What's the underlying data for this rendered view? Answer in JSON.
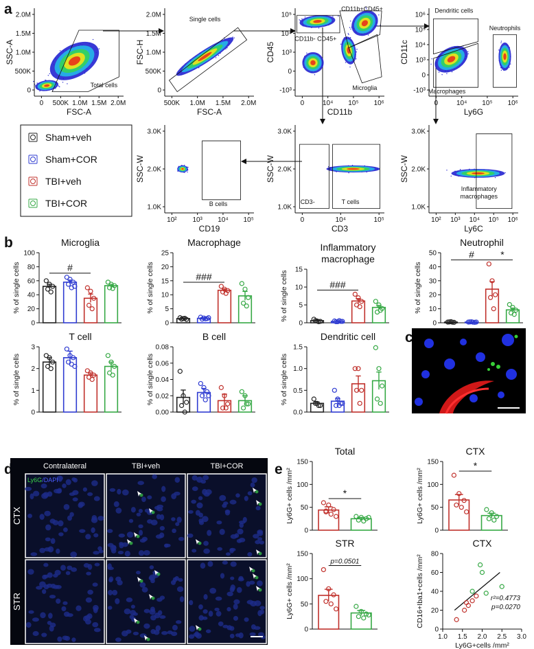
{
  "panel_labels": [
    "a",
    "b",
    "c",
    "d",
    "e"
  ],
  "legend": [
    {
      "label": "Sham+veh",
      "color": "#222222"
    },
    {
      "label": "Sham+COR",
      "color": "#2e3bd1"
    },
    {
      "label": "TBI+veh",
      "color": "#c0302b"
    },
    {
      "label": "TBI+COR",
      "color": "#35a844"
    }
  ],
  "flow_plots": [
    {
      "ylabel": "SSC-A",
      "xlabel": "FSC-A",
      "yticks": [
        "0",
        "500K",
        "1.0M",
        "1.5M",
        "2.0M"
      ],
      "xticks": [
        "0",
        "500K",
        "1.0M",
        "1.5M",
        "2.0M"
      ],
      "gates": [
        {
          "label": "Total cells"
        }
      ]
    },
    {
      "ylabel": "FSC-H",
      "xlabel": "FSC-A",
      "yticks": [
        "0",
        "500K",
        "1.0M",
        "1.5M",
        "2.0M"
      ],
      "xticks": [
        "500K",
        "1.0M",
        "1.5M",
        "2.0M"
      ],
      "gates": [
        {
          "label": "Single cells"
        }
      ]
    },
    {
      "ylabel": "CD45",
      "xlabel": "CD11b",
      "yticks": [
        "-10³",
        "0",
        "10³",
        "10⁴",
        "10⁵"
      ],
      "xticks": [
        "0",
        "10⁴",
        "10⁵",
        "10⁶"
      ],
      "gates": [
        {
          "label": "CD11b+CD45+"
        },
        {
          "label": "CD11b- CD45+"
        },
        {
          "label": "Microglia"
        }
      ]
    },
    {
      "ylabel": "CD11c",
      "xlabel": "Ly6G",
      "yticks": [
        "-10³",
        "0",
        "10³",
        "10⁴",
        "10⁵",
        "10⁶"
      ],
      "xticks": [
        "0",
        "10⁴",
        "10⁵",
        "10⁶"
      ],
      "gates": [
        {
          "label": "Dendritic cells"
        },
        {
          "label": "Neutrophils"
        },
        {
          "label": "Macrophages"
        }
      ]
    },
    {
      "ylabel": "SSC-W",
      "xlabel": "CD19",
      "yticks": [
        "1.0K",
        "2.0K",
        "3.0K"
      ],
      "xticks": [
        "10²",
        "10³",
        "10⁴",
        "10⁵"
      ],
      "gates": [
        {
          "label": "B cells"
        }
      ]
    },
    {
      "ylabel": "SSC-W",
      "xlabel": "CD3",
      "yticks": [
        "1.0K",
        "2.0K",
        "3.0K"
      ],
      "xticks": [
        "0",
        "10⁴",
        "10⁵"
      ],
      "gates": [
        {
          "label": "CD3-"
        },
        {
          "label": "T cells"
        }
      ]
    },
    {
      "ylabel": "SSC-W",
      "xlabel": "Ly6C",
      "yticks": [
        "1.0K",
        "2.0K",
        "3.0K"
      ],
      "xticks": [
        "10²",
        "10³",
        "10⁴",
        "10⁵",
        "10⁶"
      ],
      "gates": [
        {
          "label": [
            "Inflammatory",
            "macrophages"
          ]
        }
      ]
    }
  ],
  "chart_data": [
    {
      "type": "bar",
      "title": "Microglia",
      "ylabel": "% of single cells",
      "ylim": [
        0,
        100
      ],
      "yticks": [
        0,
        20,
        40,
        60,
        80,
        100
      ],
      "colors": [
        "#222222",
        "#2e3bd1",
        "#c0302b",
        "#35a844"
      ],
      "values": [
        52,
        58,
        35,
        53
      ],
      "errors": [
        3,
        3,
        6,
        2
      ],
      "points": [
        [
          60,
          55,
          52,
          48,
          44
        ],
        [
          65,
          62,
          58,
          55,
          50,
          52
        ],
        [
          50,
          45,
          35,
          25,
          20
        ],
        [
          58,
          55,
          53,
          50,
          49
        ]
      ],
      "annotations": [
        {
          "text": "#",
          "from": 0,
          "to": 2
        }
      ]
    },
    {
      "type": "bar",
      "title": "Macrophage",
      "ylabel": "% of single cells",
      "ylim": [
        0,
        25
      ],
      "yticks": [
        0,
        5,
        10,
        15,
        20,
        25
      ],
      "colors": [
        "#222222",
        "#2e3bd1",
        "#c0302b",
        "#35a844"
      ],
      "values": [
        1.5,
        1.6,
        11.6,
        9.6
      ],
      "errors": [
        0.2,
        0.2,
        0.5,
        1.6
      ],
      "points": [
        [
          1.8,
          1.5,
          1.2,
          1.3,
          1.6
        ],
        [
          2,
          1.7,
          1.5,
          1.3,
          1.4,
          1.8
        ],
        [
          13,
          12,
          11.5,
          11,
          10.5
        ],
        [
          14,
          12,
          9,
          7,
          6
        ]
      ],
      "annotations": [
        {
          "text": "###",
          "from": 0,
          "to": 2
        }
      ]
    },
    {
      "type": "bar",
      "title": [
        "Inflammatory",
        "macrophage"
      ],
      "ylabel": "% of single cells",
      "ylim": [
        0,
        15
      ],
      "yticks": [
        0,
        5,
        10,
        15
      ],
      "colors": [
        "#222222",
        "#2e3bd1",
        "#c0302b",
        "#35a844"
      ],
      "values": [
        0.6,
        0.4,
        6.1,
        4.3
      ],
      "errors": [
        0.2,
        0.1,
        0.7,
        0.6
      ],
      "points": [
        [
          1,
          0.5,
          0.4,
          0.6,
          0.3
        ],
        [
          0.5,
          0.3,
          0.4,
          0.3,
          0.6,
          0.4
        ],
        [
          8,
          7,
          6,
          5,
          4.5
        ],
        [
          6,
          5,
          4,
          3,
          3.5
        ]
      ],
      "annotations": [
        {
          "text": "###",
          "from": 0,
          "to": 2
        }
      ]
    },
    {
      "type": "bar",
      "title": "Neutrophil",
      "ylabel": "% of single cells",
      "ylim": [
        0,
        50
      ],
      "yticks": [
        0,
        10,
        20,
        30,
        40,
        50
      ],
      "colors": [
        "#222222",
        "#2e3bd1",
        "#c0302b",
        "#35a844"
      ],
      "values": [
        0.5,
        0.5,
        24,
        9.2
      ],
      "errors": [
        0.1,
        0.1,
        5.4,
        1.3
      ],
      "points": [
        [
          0.5,
          0.8,
          0.3,
          0.6,
          0.4
        ],
        [
          0.5,
          0.7,
          0.3,
          0.6,
          0.4,
          0.5
        ],
        [
          42,
          30,
          20,
          18,
          10
        ],
        [
          13,
          11,
          9,
          7,
          6
        ]
      ],
      "annotations": [
        {
          "text": "#",
          "from": 0,
          "to": 2
        },
        {
          "text": "*",
          "from": 2,
          "to": 3
        }
      ]
    },
    {
      "type": "bar",
      "title": "T cell",
      "ylabel": "% of single cells",
      "ylim": [
        0,
        3
      ],
      "yticks": [
        0,
        1,
        2,
        3
      ],
      "colors": [
        "#222222",
        "#2e3bd1",
        "#c0302b",
        "#35a844"
      ],
      "values": [
        2.3,
        2.5,
        1.7,
        2.1
      ],
      "errors": [
        0.2,
        0.3,
        0.1,
        0.2
      ],
      "points": [
        [
          2.6,
          2.5,
          2.3,
          2.1,
          2.0
        ],
        [
          2.9,
          2.6,
          2.5,
          2.3,
          2.2,
          2.1
        ],
        [
          1.9,
          1.8,
          1.7,
          1.6,
          1.5
        ],
        [
          2.6,
          2.3,
          2.1,
          1.8,
          1.7
        ]
      ],
      "annotations": []
    },
    {
      "type": "bar",
      "title": "B cell",
      "ylabel": "% of single cells",
      "ylim": [
        0,
        0.08
      ],
      "yticks": [
        {
          "value": 0,
          "label": "0.00"
        },
        0.02,
        0.04,
        0.06,
        0.08
      ],
      "colors": [
        "#222222",
        "#2e3bd1",
        "#c0302b",
        "#35a844"
      ],
      "values": [
        0.018,
        0.024,
        0.014,
        0.014
      ],
      "errors": [
        0.009,
        0.005,
        0.008,
        0.006
      ],
      "points": [
        [
          0.05,
          0.02,
          0.012,
          0.008,
          0
        ],
        [
          0.035,
          0.03,
          0.025,
          0.02,
          0.015,
          0.02
        ],
        [
          0.03,
          0.02,
          0.01,
          0.005,
          0.005
        ],
        [
          0.025,
          0.02,
          0.01,
          0.005,
          0.01
        ]
      ],
      "annotations": []
    },
    {
      "type": "bar",
      "title": "Dendritic cell",
      "ylabel": "% of single cells",
      "ylim": [
        0,
        1.5
      ],
      "yticks": [
        {
          "value": 0,
          "label": "0.0"
        },
        0.5,
        {
          "value": 1,
          "label": "1.0"
        },
        1.5
      ],
      "colors": [
        "#222222",
        "#2e3bd1",
        "#c0302b",
        "#35a844"
      ],
      "values": [
        0.2,
        0.25,
        0.65,
        0.72
      ],
      "errors": [
        0.03,
        0.06,
        0.18,
        0.2
      ],
      "points": [
        [
          0.3,
          0.2,
          0.15,
          0.2,
          0.15
        ],
        [
          0.5,
          0.3,
          0.2,
          0.15,
          0.15,
          0.2
        ],
        [
          1.0,
          1.0,
          0.5,
          0.5,
          0.2
        ],
        [
          1.48,
          1.0,
          0.6,
          0.3,
          0.2
        ]
      ],
      "annotations": []
    },
    {
      "type": "bar",
      "title": "Total",
      "ylabel": "Ly6G+ cells /mm²",
      "ylim": [
        0,
        150
      ],
      "yticks": [
        0,
        50,
        100,
        150
      ],
      "colors": [
        "#c0302b",
        "#35a844"
      ],
      "values": [
        44,
        25
      ],
      "errors": [
        7,
        3
      ],
      "points": [
        [
          60,
          55,
          45,
          40,
          35,
          30,
          42
        ],
        [
          30,
          28,
          25,
          22,
          20,
          28
        ]
      ],
      "annotations": [
        {
          "text": "*",
          "from": 0,
          "to": 1
        }
      ]
    },
    {
      "type": "bar",
      "title": "CTX",
      "ylabel": "Ly6G+ cells /mm²",
      "ylim": [
        0,
        150
      ],
      "yticks": [
        0,
        50,
        100,
        150
      ],
      "colors": [
        "#c0302b",
        "#35a844"
      ],
      "values": [
        66,
        32
      ],
      "errors": [
        12,
        5
      ],
      "points": [
        [
          120,
          80,
          65,
          55,
          50,
          40
        ],
        [
          45,
          38,
          30,
          25,
          22
        ]
      ],
      "annotations": [
        {
          "text": "*",
          "from": 0,
          "to": 1
        }
      ]
    },
    {
      "type": "bar",
      "title": "STR",
      "ylabel": "Ly6G+ cells /mm²",
      "ylim": [
        0,
        150
      ],
      "yticks": [
        0,
        50,
        100,
        150
      ],
      "colors": [
        "#c0302b",
        "#35a844"
      ],
      "values": [
        67,
        32
      ],
      "errors": [
        12,
        5
      ],
      "points": [
        [
          118,
          80,
          68,
          55,
          50,
          40
        ],
        [
          45,
          35,
          30,
          25,
          22,
          28
        ]
      ],
      "annotations": [
        {
          "text": "p=0.0501",
          "from": 0,
          "to": 1
        }
      ]
    },
    {
      "type": "scatter",
      "title": "CTX",
      "ylabel": "CD16+Iba1+cells /mm²",
      "xlabel": "Ly6G+cells /mm²",
      "xlim": [
        1,
        3
      ],
      "xticks": [
        {
          "value": 1,
          "label": "1.0"
        },
        1.5,
        {
          "value": 2,
          "label": "2.0"
        },
        2.5,
        {
          "value": 3,
          "label": "3.0"
        }
      ],
      "ylim": [
        0,
        80
      ],
      "yticks": [
        0,
        20,
        40,
        60,
        80
      ],
      "series": [
        {
          "color": "#c0302b",
          "x": [
            1.35,
            1.55,
            1.65,
            1.75,
            1.85,
            1.6
          ],
          "values": [
            10,
            20,
            25,
            30,
            35,
            28
          ]
        },
        {
          "color": "#35a844",
          "x": [
            1.75,
            1.95,
            2.0,
            2.1,
            2.5
          ],
          "values": [
            40,
            68,
            60,
            38,
            45
          ]
        }
      ],
      "fit": {
        "x": [
          1.3,
          2.45
        ],
        "values": [
          20,
          60
        ]
      },
      "stats": [
        "r²=0.4773",
        "p=0.0270"
      ]
    }
  ],
  "panel_d": {
    "stain": [
      "Ly6G",
      "/DAPI"
    ],
    "columns": [
      "Contralateral",
      "TBI+veh",
      "TBI+COR"
    ],
    "rows": [
      "CTX",
      "STR"
    ]
  }
}
